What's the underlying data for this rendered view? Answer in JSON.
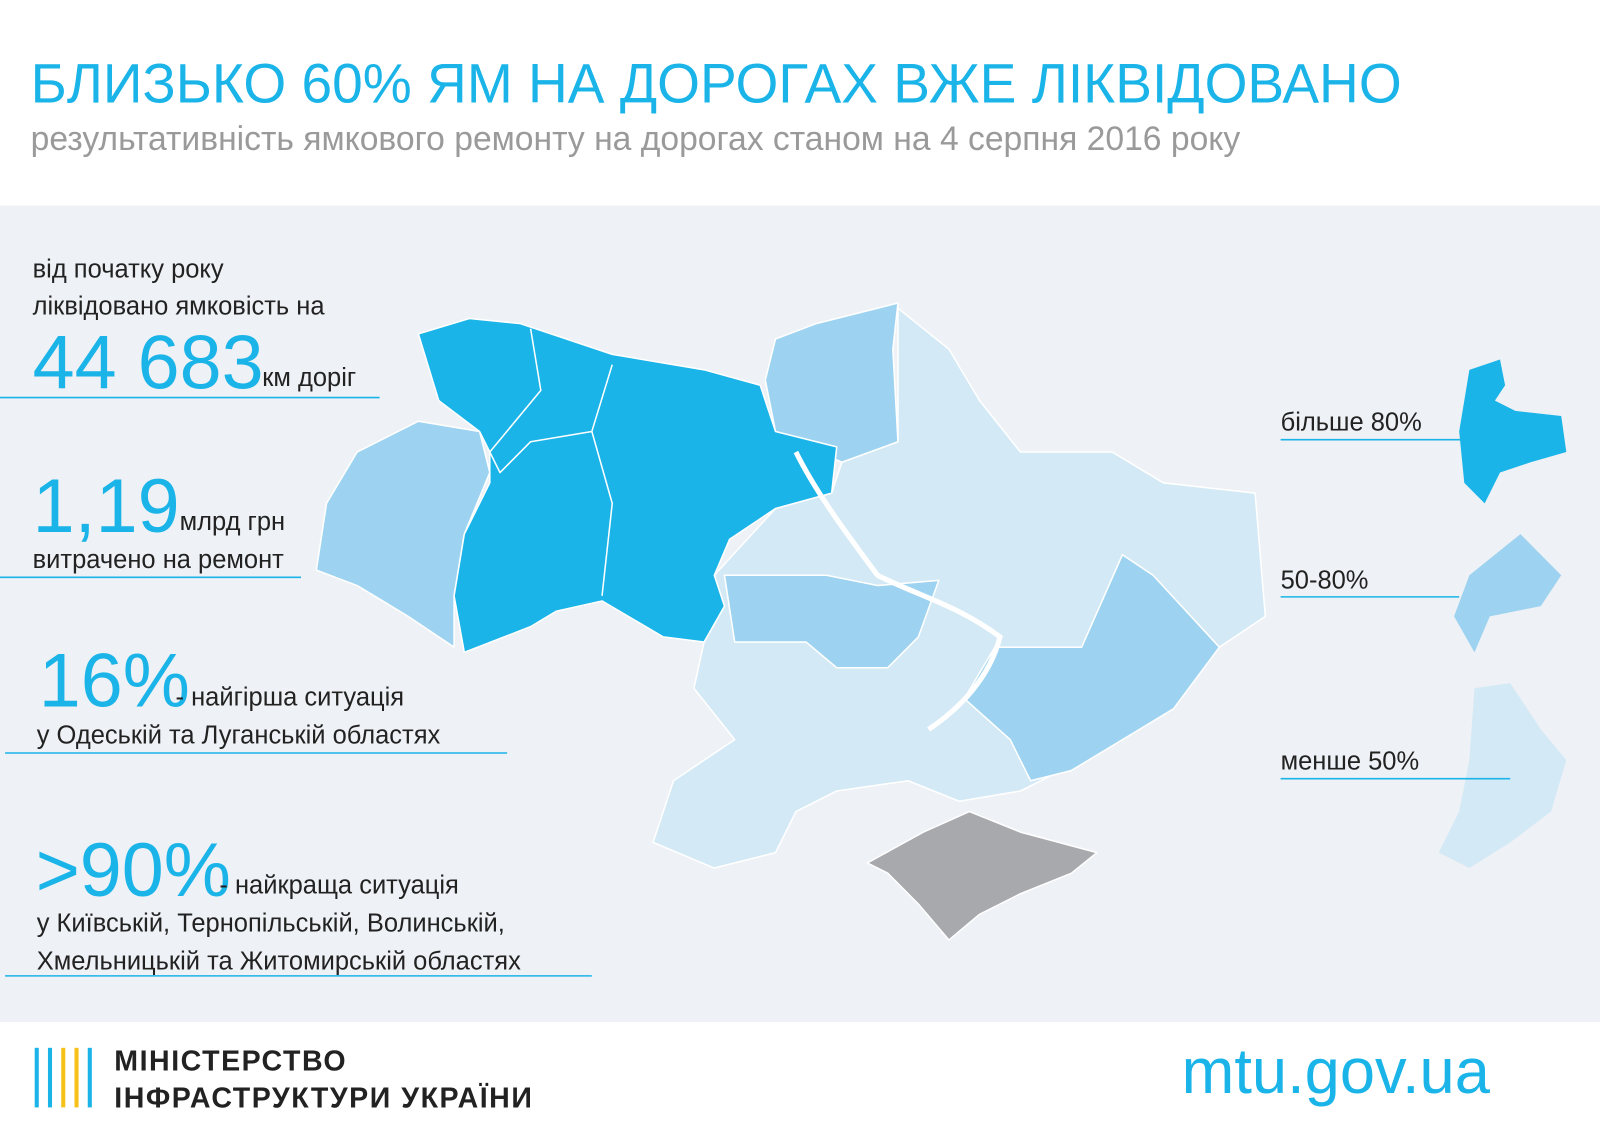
{
  "header": {
    "title": "БЛИЗЬКО 60% ЯМ НА ДОРОГАХ ВЖЕ ЛІКВІДОВАНО",
    "subtitle": "результативність ямкового ремонту на дорогах станом на 4 серпня 2016 року"
  },
  "facts": [
    {
      "intro": [
        "від початку року",
        "ліквідовано ямковість на"
      ],
      "figure": "44 683",
      "unit": "км доріг"
    },
    {
      "figure": "1,19",
      "unit": "млрд грн",
      "note": [
        "витрачено на ремонт"
      ]
    },
    {
      "figure": "16%",
      "unit": "- найгірша ситуація",
      "note": [
        "у Одеській та Луганській областях"
      ]
    },
    {
      "figure": ">90%",
      "unit": "- найкраща ситуація",
      "note": [
        "у Київській, Тернопільській, Волинській,",
        "Хмельницькій та Житомирській областях"
      ]
    }
  ],
  "legend": [
    {
      "label": "більше 80%",
      "color": "#1ab4e8"
    },
    {
      "label": "50-80%",
      "color": "#9dd3f0"
    },
    {
      "label": "менше 50%",
      "color": "#d3e9f5"
    }
  ],
  "footer": {
    "ministry": [
      "МІНІСТЕРСТВО",
      "ІНФРАСТРУКТУРИ УКРАЇНИ"
    ],
    "site": "mtu.gov.ua"
  }
}
